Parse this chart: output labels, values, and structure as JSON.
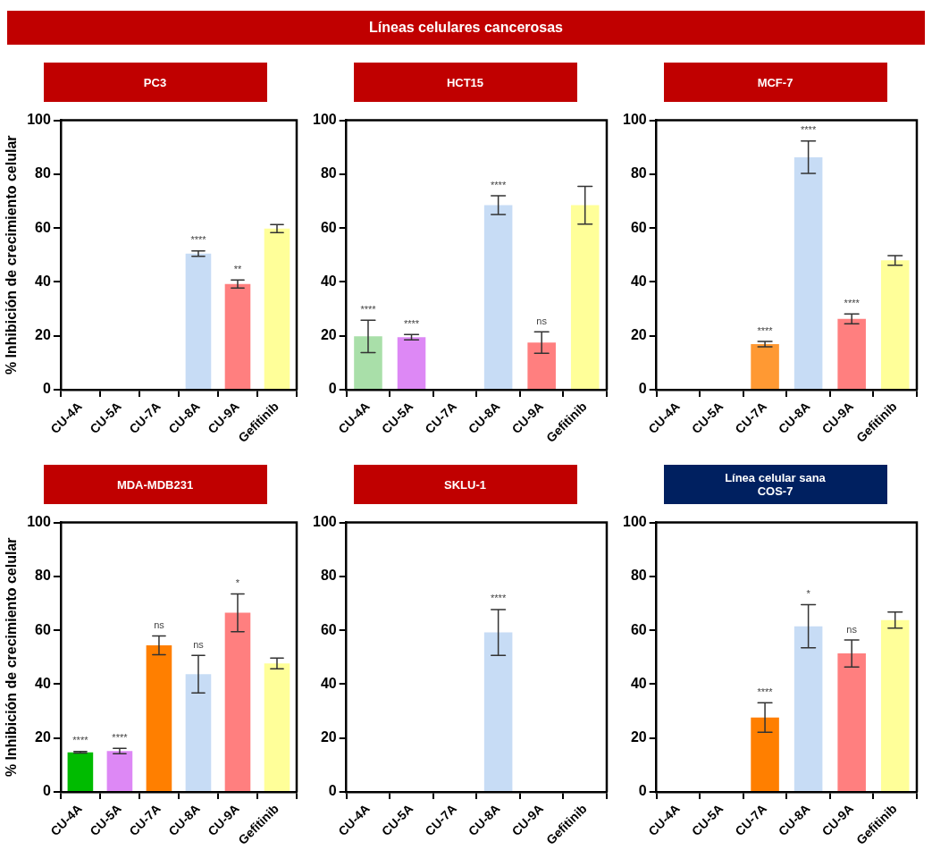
{
  "chart_data": [
    {
      "type": "bar",
      "title": "PC3",
      "annotations": [
        "Líneas celulares cancerosas"
      ],
      "ylabel": "% Inhibición de crecimiento celular",
      "categories": [
        "CU-4A",
        "CU-5A",
        "CU-7A",
        "CU-8A",
        "CU-9A",
        "Gefitinib"
      ],
      "values": [
        null,
        null,
        null,
        50.5,
        39.2,
        59.8
      ],
      "errors": [
        null,
        null,
        null,
        1,
        1.5,
        1.5
      ],
      "value_labels": [
        null,
        null,
        null,
        "****",
        "**",
        null
      ],
      "colors": [
        "#a9dfa9",
        "#dd88f5",
        "#ff9933",
        "#c7dcf5",
        "#ff7f7f",
        "#ffff99"
      ],
      "ylim": [
        0,
        100
      ],
      "yticks": [
        0,
        20,
        40,
        60,
        80,
        100
      ],
      "grid": false,
      "legend": false
    },
    {
      "type": "bar",
      "title": "HCT15",
      "categories": [
        "CU-4A",
        "CU-5A",
        "CU-7A",
        "CU-8A",
        "CU-9A",
        "Gefitinib"
      ],
      "values": [
        19.8,
        19.5,
        null,
        68.5,
        17.5,
        68.5
      ],
      "errors": [
        6,
        1,
        null,
        3.5,
        4,
        7
      ],
      "value_labels": [
        "****",
        "****",
        null,
        "****",
        "ns",
        null
      ],
      "colors": [
        "#a9dfa9",
        "#dd88f5",
        "#ff9933",
        "#c7dcf5",
        "#ff7f7f",
        "#ffff99"
      ],
      "ylim": [
        0,
        100
      ],
      "yticks": [
        0,
        20,
        40,
        60,
        80,
        100
      ],
      "grid": false,
      "legend": false
    },
    {
      "type": "bar",
      "title": "MCF-7",
      "categories": [
        "CU-4A",
        "CU-5A",
        "CU-7A",
        "CU-8A",
        "CU-9A",
        "Gefitinib"
      ],
      "values": [
        null,
        null,
        16.9,
        86.3,
        26.3,
        48
      ],
      "errors": [
        null,
        null,
        1,
        6,
        1.8,
        1.8
      ],
      "value_labels": [
        null,
        null,
        "****",
        "****",
        "****",
        null
      ],
      "colors": [
        "#a9dfa9",
        "#dd88f5",
        "#ff9933",
        "#c7dcf5",
        "#ff7f7f",
        "#ffff99"
      ],
      "ylim": [
        0,
        100
      ],
      "yticks": [
        0,
        20,
        40,
        60,
        80,
        100
      ],
      "grid": false,
      "legend": false
    },
    {
      "type": "bar",
      "title": "MDA-MDB231",
      "ylabel": "% Inhibición de crecimiento celular",
      "categories": [
        "CU-4A",
        "CU-5A",
        "CU-7A",
        "CU-8A",
        "CU-9A",
        "Gefitinib"
      ],
      "values": [
        14.7,
        15.2,
        54.4,
        43.7,
        66.5,
        47.7
      ],
      "errors": [
        0.3,
        1,
        3.5,
        7,
        7,
        2
      ],
      "value_labels": [
        "****",
        "****",
        "ns",
        "ns",
        "*",
        null
      ],
      "colors": [
        "#00bb00",
        "#dd88f5",
        "#ff7f00",
        "#c7dcf5",
        "#ff7f7f",
        "#ffff99"
      ],
      "ylim": [
        0,
        100
      ],
      "yticks": [
        0,
        20,
        40,
        60,
        80,
        100
      ],
      "grid": false,
      "legend": false
    },
    {
      "type": "bar",
      "title": "SKLU-1",
      "categories": [
        "CU-4A",
        "CU-5A",
        "CU-7A",
        "CU-8A",
        "CU-9A",
        "Gefitinib"
      ],
      "values": [
        null,
        null,
        null,
        59.2,
        null,
        null
      ],
      "errors": [
        null,
        null,
        null,
        8.5,
        null,
        null
      ],
      "value_labels": [
        null,
        null,
        null,
        "****",
        null,
        null
      ],
      "colors": [
        "#00bb00",
        "#dd88f5",
        "#ff7f00",
        "#c7dcf5",
        "#ff7f7f",
        "#ffff99"
      ],
      "ylim": [
        0,
        100
      ],
      "yticks": [
        0,
        20,
        40,
        60,
        80,
        100
      ],
      "grid": false,
      "legend": false
    },
    {
      "type": "bar",
      "title": "Línea celular sana",
      "subtitle": "COS-7",
      "categories": [
        "CU-4A",
        "CU-5A",
        "CU-7A",
        "CU-8A",
        "CU-9A",
        "Gefitinib"
      ],
      "values": [
        null,
        null,
        27.6,
        61.5,
        51.4,
        63.8
      ],
      "errors": [
        null,
        null,
        5.5,
        8,
        5,
        3
      ],
      "value_labels": [
        null,
        null,
        "****",
        "*",
        "ns",
        null
      ],
      "colors": [
        "#00bb00",
        "#dd88f5",
        "#ff7f00",
        "#c7dcf5",
        "#ff7f7f",
        "#ffff99"
      ],
      "ylim": [
        0,
        100
      ],
      "yticks": [
        0,
        20,
        40,
        60,
        80,
        100
      ],
      "grid": false,
      "legend": false
    }
  ]
}
